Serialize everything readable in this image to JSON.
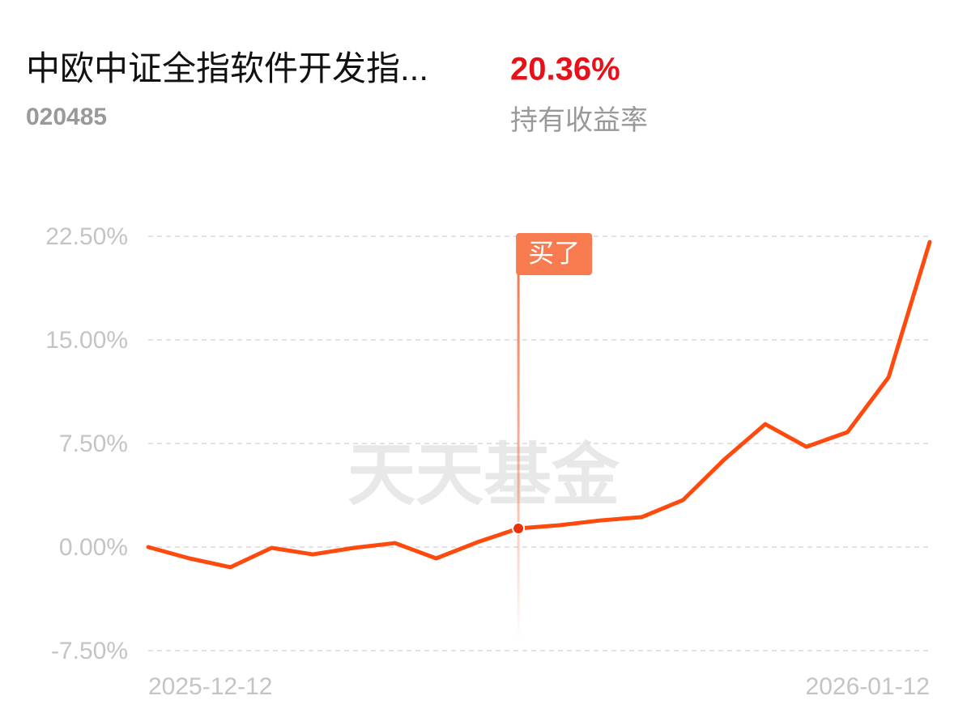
{
  "chart_data": {
    "type": "line",
    "title": "中欧中证全指软件开发指...",
    "code": "020485",
    "return_value": "20.36%",
    "return_label": "持有收益率",
    "watermark": "天天基金",
    "categories": [
      "2025-12-12",
      null,
      null,
      null,
      null,
      null,
      null,
      null,
      null,
      null,
      null,
      null,
      null,
      null,
      null,
      null,
      null,
      null,
      null,
      "2026-01-12"
    ],
    "series": [
      {
        "name": "持有收益率",
        "color": "#ff4a0e",
        "values": [
          0,
          -0.82,
          -1.46,
          -0.06,
          -0.53,
          -0.06,
          0.29,
          -0.82,
          0.35,
          1.35,
          1.58,
          1.93,
          2.17,
          3.4,
          6.33,
          8.9,
          7.26,
          8.32,
          12.3,
          22.09
        ]
      }
    ],
    "buy_marker": {
      "index": 9,
      "label": "买了",
      "color": "#f77b4f"
    },
    "ylim": [
      -7.5,
      22.5
    ],
    "yticks": [
      {
        "value": 22.5,
        "label": "22.50%"
      },
      {
        "value": 15,
        "label": "15.00%"
      },
      {
        "value": 7.5,
        "label": "7.50%"
      },
      {
        "value": 0,
        "label": "0.00%"
      },
      {
        "value": -7.5,
        "label": "-7.50%"
      }
    ],
    "grid": true
  }
}
